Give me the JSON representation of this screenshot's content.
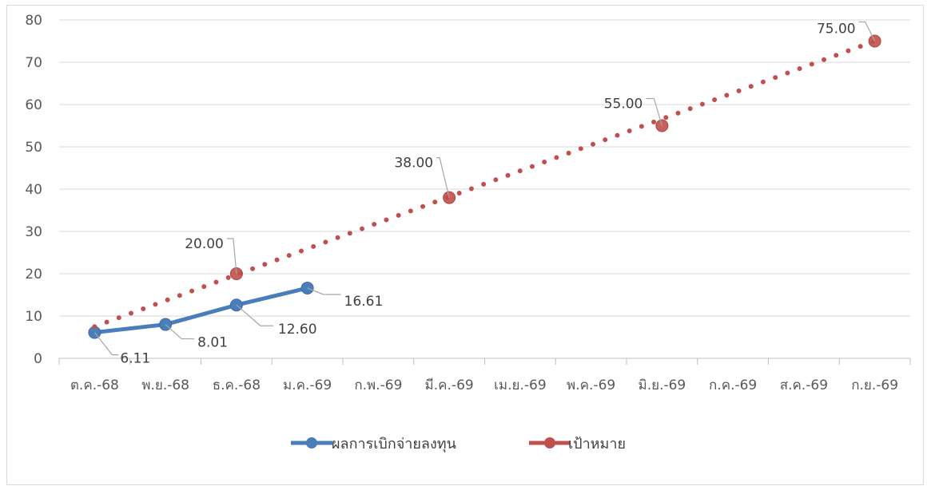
{
  "chart_data": {
    "type": "line",
    "categories": [
      "ต.ค.-68",
      "พ.ย.-68",
      "ธ.ค.-68",
      "ม.ค.-69",
      "ก.พ.-69",
      "มี.ค.-69",
      "เม.ย.-69",
      "พ.ค.-69",
      "มิ.ย.-69",
      "ก.ค.-69",
      "ส.ค.-69",
      "ก.ย.-69"
    ],
    "ylim": [
      0,
      80
    ],
    "yticks": [
      0,
      10,
      20,
      30,
      40,
      50,
      60,
      70,
      80
    ],
    "grid": true,
    "legend_position": "bottom",
    "series": [
      {
        "name": "ผลการเบิกจ่ายลงทุน",
        "color": "#4a7ebb",
        "style": "solid",
        "points": [
          {
            "x": "ต.ค.-68",
            "y": 6.11,
            "label": "6.11"
          },
          {
            "x": "พ.ย.-68",
            "y": 8.01,
            "label": "8.01"
          },
          {
            "x": "ธ.ค.-68",
            "y": 12.6,
            "label": "12.60"
          },
          {
            "x": "ม.ค.-69",
            "y": 16.61,
            "label": "16.61"
          }
        ]
      },
      {
        "name": "เป้าหมาย",
        "color": "#c0504d",
        "style": "dotted",
        "line_from": {
          "x": "ต.ค.-68",
          "y": 7.5
        },
        "points": [
          {
            "x": "ธ.ค.-68",
            "y": 20.0,
            "label": "20.00"
          },
          {
            "x": "มี.ค.-69",
            "y": 38.0,
            "label": "38.00"
          },
          {
            "x": "มิ.ย.-69",
            "y": 55.0,
            "label": "55.00"
          },
          {
            "x": "ก.ย.-69",
            "y": 75.0,
            "label": "75.00"
          }
        ]
      }
    ]
  }
}
